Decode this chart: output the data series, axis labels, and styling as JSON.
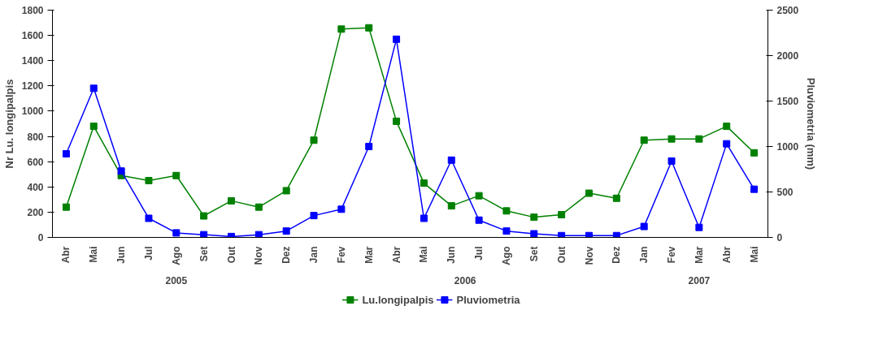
{
  "chart_data": {
    "type": "line",
    "ylabel": "Nr Lu. longipalpis",
    "y2label": "Pluviometria (mm)",
    "categories": [
      "Abr",
      "Mai",
      "Jun",
      "Jul",
      "Ago",
      "Set",
      "Out",
      "Nov",
      "Dez",
      "Jan",
      "Fev",
      "Mar",
      "Abr",
      "Mai",
      "Jun",
      "Jul",
      "Ago",
      "Set",
      "Out",
      "Nov",
      "Dez",
      "Jan",
      "Fev",
      "Mar",
      "Abr",
      "Mai"
    ],
    "annotations": [
      "2005",
      "2006",
      "2007"
    ],
    "series": [
      {
        "name": "Lu.longipalpis",
        "color": "#008000",
        "values": [
          240,
          880,
          490,
          450,
          490,
          170,
          290,
          240,
          370,
          770,
          1650,
          1660,
          920,
          430,
          250,
          330,
          210,
          160,
          180,
          350,
          310,
          770,
          780,
          780,
          880,
          670
        ]
      },
      {
        "name": "Pluviometria",
        "color": "#0000ff",
        "axis": "y2",
        "values": [
          920,
          1640,
          730,
          210,
          50,
          30,
          10,
          30,
          70,
          240,
          310,
          1000,
          2180,
          210,
          850,
          190,
          70,
          40,
          20,
          20,
          20,
          120,
          840,
          110,
          1030,
          530
        ]
      }
    ],
    "ylim": [
      0,
      1800
    ],
    "yticks": [
      0,
      200,
      400,
      600,
      800,
      1000,
      1200,
      1400,
      1600,
      1800
    ],
    "y2lim": [
      0,
      2500
    ],
    "y2ticks": [
      0,
      500,
      1000,
      1500,
      2000,
      2500
    ],
    "marker": "square",
    "legend": "bottom",
    "grid": false
  }
}
